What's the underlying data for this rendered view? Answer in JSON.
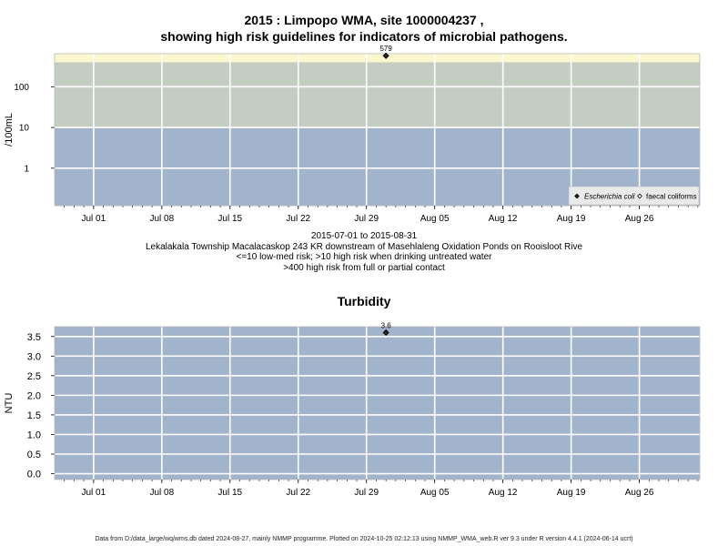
{
  "chart_data": [
    {
      "type": "scatter",
      "title_line1": "2015 : Limpopo WMA, site 1000004237 ,",
      "title_line2": "showing high risk guidelines for indicators of microbial pathogens.",
      "ylabel": "/100mL",
      "y_scale": "log",
      "y_ticks": [
        "1",
        "10",
        "100"
      ],
      "x_ticks": [
        "Jul 01",
        "Jul 08",
        "Jul 15",
        "Jul 22",
        "Jul 29",
        "Aug 05",
        "Aug 12",
        "Aug 19",
        "Aug 26"
      ],
      "bands": [
        {
          "from": 0.12,
          "to": 10,
          "color": "#a2b4cc"
        },
        {
          "from": 10,
          "to": 400,
          "color": "#c3cdc1"
        },
        {
          "from": 400,
          "to": 650,
          "color": "#fbf7cf"
        }
      ],
      "series": [
        {
          "name": "Escherichia coli",
          "marker": "filled-diamond",
          "points": [
            {
              "x": "2015-07-31",
              "y": 579,
              "label": "579"
            }
          ]
        },
        {
          "name": "faecal coliforms",
          "marker": "open-diamond",
          "points": []
        }
      ],
      "legend_position": "bottom-right",
      "grid": true,
      "notes": [
        "2015-07-01 to 2015-08-31",
        "Lekalakala Township Macalacaskop 243 KR downstream of Masehlaleng Oxidation Ponds on Rooisloot Rive",
        "<=10 low-med risk; >10 high risk when drinking untreated water",
        ">400 high risk from full or partial contact"
      ]
    },
    {
      "type": "scatter",
      "title": "Turbidity",
      "ylabel": "NTU",
      "ylim": [
        -0.15,
        3.75
      ],
      "y_ticks": [
        "0.0",
        "0.5",
        "1.0",
        "1.5",
        "2.0",
        "2.5",
        "3.0",
        "3.5"
      ],
      "x_ticks": [
        "Jul 01",
        "Jul 08",
        "Jul 15",
        "Jul 22",
        "Jul 29",
        "Aug 05",
        "Aug 12",
        "Aug 19",
        "Aug 26"
      ],
      "background": "#a2b4cc",
      "grid": true,
      "series": [
        {
          "marker": "filled-diamond",
          "points": [
            {
              "x": "2015-07-31",
              "y": 3.6,
              "label": "3.6"
            }
          ]
        }
      ]
    }
  ],
  "footer": "Data from D:/data_large/wq/wms.db dated 2024-08-27, mainly NMMP programme. Plotted on 2024-10-25 02:12:13 using NMMP_WMA_web.R ver 9.3 under R version 4.4.1 (2024-06-14 ucrt)"
}
